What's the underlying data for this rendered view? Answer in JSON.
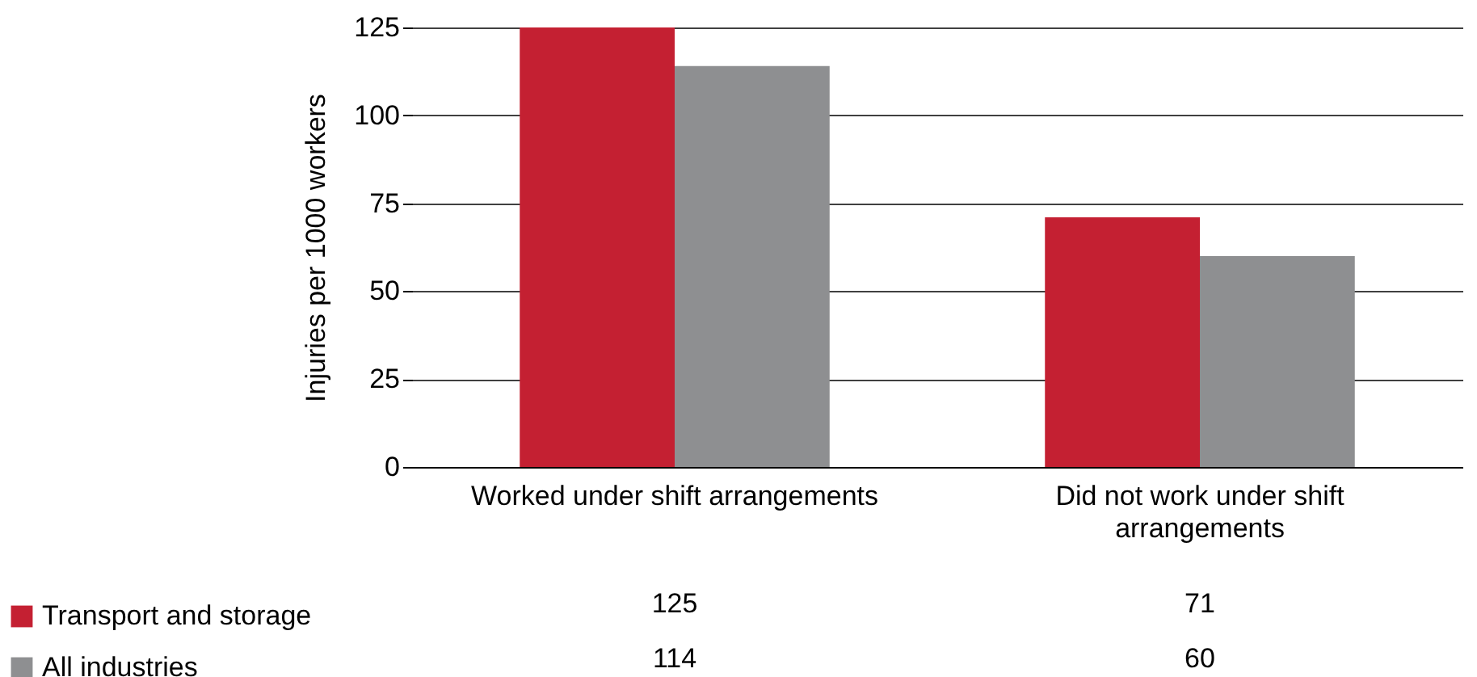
{
  "chart_data": {
    "type": "bar",
    "ylabel": "Injuries per 1000 workers",
    "categories": [
      "Worked under shift arrangements",
      "Did not work under shift arrangements"
    ],
    "series": [
      {
        "name": "Transport and storage",
        "color": "#c42032",
        "values": [
          125,
          71
        ]
      },
      {
        "name": "All industries",
        "color": "#8e8f91",
        "values": [
          114,
          60
        ]
      }
    ],
    "ylim": [
      0,
      125
    ],
    "yticks": [
      0,
      25,
      50,
      75,
      100,
      125
    ],
    "grid": "y",
    "legend": "bottom left",
    "data_labels": true
  }
}
